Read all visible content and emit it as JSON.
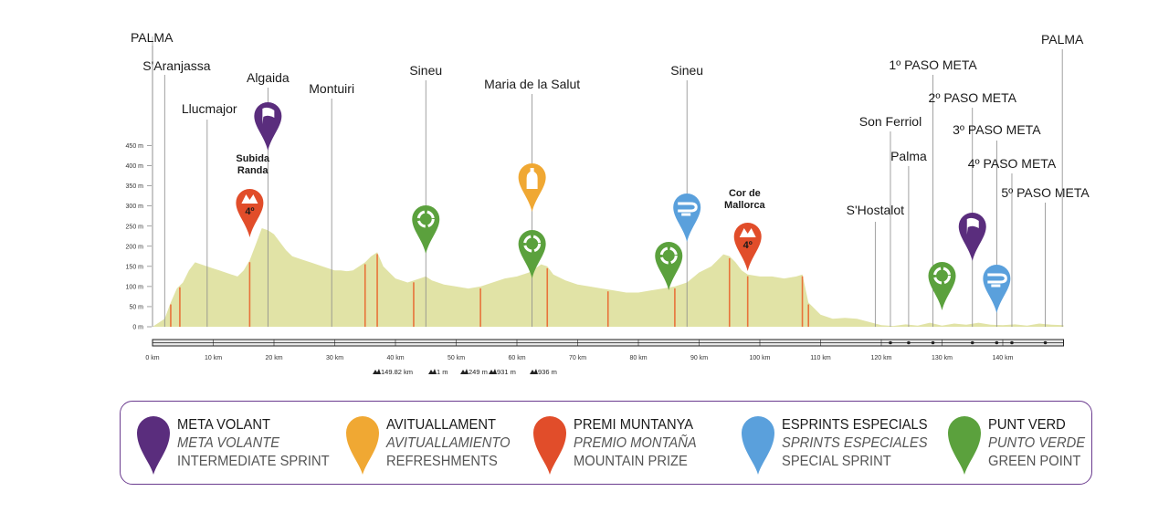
{
  "chart_data": {
    "type": "area",
    "y_ticks": [
      "0 m",
      "50 m",
      "100 m",
      "150 m",
      "200 m",
      "250 m",
      "300 m",
      "350 m",
      "400 m",
      "450 m"
    ],
    "x_ticks": [
      "0 km",
      "10 km",
      "20 km",
      "30 km",
      "40 km",
      "50 km",
      "60 km",
      "70 km",
      "80 km",
      "90 km",
      "100 km",
      "110 km",
      "120 km",
      "130 km",
      "140 km"
    ],
    "xlim": [
      0,
      150
    ],
    "ylim": [
      0,
      450
    ],
    "profile_km": [
      0,
      1,
      2,
      3,
      4,
      5,
      6,
      7,
      8,
      9,
      10,
      11,
      12,
      13,
      14,
      15,
      16,
      17,
      18,
      19,
      20,
      21,
      22,
      23,
      24,
      25,
      26,
      27,
      28,
      29,
      30,
      31,
      32,
      33,
      34,
      35,
      36,
      37,
      38,
      40,
      42,
      44,
      45,
      46,
      48,
      50,
      52,
      54,
      56,
      58,
      60,
      62,
      64,
      65,
      66,
      68,
      70,
      72,
      74,
      76,
      78,
      80,
      82,
      84,
      86,
      88,
      90,
      92,
      93,
      94,
      95,
      96,
      97,
      98,
      100,
      102,
      104,
      106,
      107,
      108,
      110,
      112,
      114,
      116,
      118,
      120,
      122,
      124,
      126,
      128,
      130,
      132,
      134,
      136,
      138,
      140,
      142,
      144,
      146,
      148,
      150
    ],
    "profile_m": [
      0,
      10,
      20,
      60,
      95,
      110,
      140,
      160,
      155,
      150,
      145,
      140,
      135,
      130,
      125,
      140,
      165,
      205,
      245,
      240,
      230,
      210,
      190,
      175,
      170,
      165,
      160,
      155,
      150,
      145,
      140,
      140,
      138,
      140,
      150,
      160,
      175,
      185,
      150,
      120,
      110,
      120,
      125,
      115,
      105,
      100,
      95,
      100,
      110,
      120,
      125,
      135,
      155,
      150,
      130,
      115,
      105,
      100,
      95,
      90,
      85,
      85,
      90,
      95,
      100,
      110,
      135,
      150,
      165,
      180,
      175,
      160,
      140,
      130,
      125,
      125,
      120,
      125,
      130,
      60,
      30,
      20,
      22,
      20,
      12,
      4,
      2,
      6,
      3,
      10,
      3,
      8,
      5,
      10,
      5,
      4,
      6,
      3,
      8,
      5,
      4
    ],
    "orange_marks_km": [
      3,
      4.5,
      16,
      35,
      37,
      43,
      54,
      65,
      75,
      86,
      95,
      98,
      107,
      108
    ],
    "places": [
      "PALMA",
      "S'Aranjassa",
      "Llucmajor",
      "Algaida",
      "Montuiri",
      "Sineu",
      "Maria de la Salut",
      "Sineu",
      "S'Hostalot",
      "Son Ferriol",
      "Palma",
      "1º PASO META",
      "2º PASO META",
      "3º PASO META",
      "4º PASO META",
      "5º PASO META",
      "PALMA"
    ],
    "climb_labels": [
      "Subida\nRanda",
      "Cor de\nMallorca"
    ],
    "climb_category": [
      "4º",
      "4º"
    ],
    "stats": [
      "149.82 km",
      "1 m",
      "249 m",
      "931 m",
      "936 m"
    ]
  },
  "colors": {
    "profile_fill": "#e1e3a6",
    "orange_line": "#e8733a",
    "purple": "#5a2d7d",
    "amber": "#f0a833",
    "red": "#e14d2a",
    "blue": "#5aa0dc",
    "green": "#5ba13d",
    "legend_border": "#6b3c8f"
  },
  "legend": [
    {
      "icon": "flag-icon",
      "l1": "META VOLANT",
      "l2": "META VOLANTE",
      "l3": "INTERMEDIATE SPRINT"
    },
    {
      "icon": "bottle-icon",
      "l1": "AVITUALLAMENT",
      "l2": "AVITUALLAMIENTO",
      "l3": "REFRESHMENTS"
    },
    {
      "icon": "mountain-icon",
      "l1": "PREMI MUNTANYA",
      "l2": "PREMIO MONTAÑA",
      "l3": "MOUNTAIN PRIZE"
    },
    {
      "icon": "wind-icon",
      "l1": "ESPRINTS ESPECIALS",
      "l2": "SPRINTS ESPECIALES",
      "l3": "SPECIAL SPRINT"
    },
    {
      "icon": "recycle-icon",
      "l1": "PUNT VERD",
      "l2": "PUNTO VERDE",
      "l3": "GREEN POINT"
    }
  ]
}
